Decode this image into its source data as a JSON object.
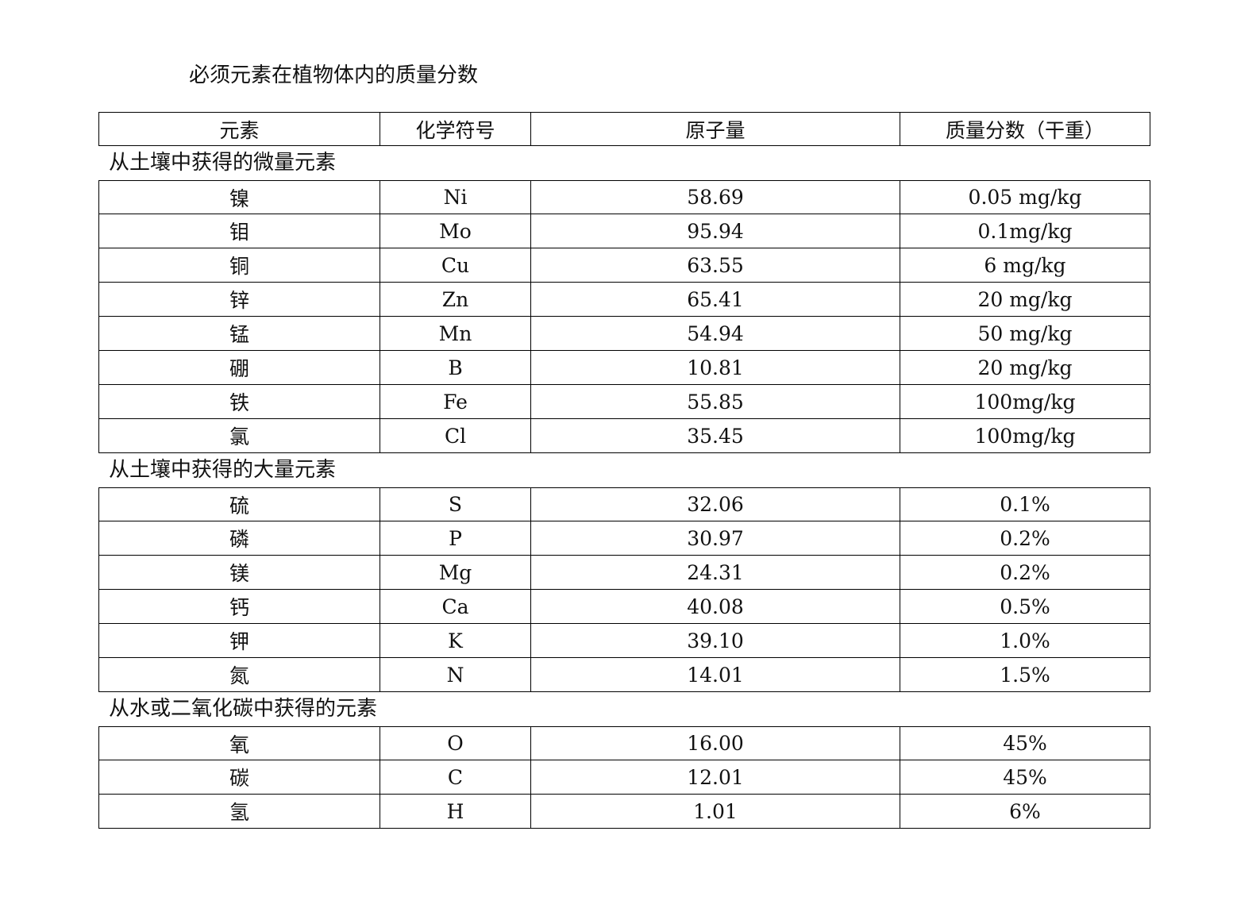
{
  "title": "必须元素在植物体内的质量分数",
  "headers": [
    "元素",
    "化学符号",
    "原子量",
    "质量分数（干重）"
  ],
  "sections": [
    {
      "label": "从土壤中获得的微量元素",
      "rows": [
        [
          "镍",
          "Ni",
          "58.69",
          "0.05 mg/kg"
        ],
        [
          "钼",
          "Mo",
          "95.94",
          "0.1mg/kg"
        ],
        [
          "铜",
          "Cu",
          "63.55",
          "6 mg/kg"
        ],
        [
          "锌",
          "Zn",
          "65.41",
          "20 mg/kg"
        ],
        [
          "锰",
          "Mn",
          "54.94",
          "50 mg/kg"
        ],
        [
          "硼",
          "B",
          "10.81",
          "20 mg/kg"
        ],
        [
          "铁",
          "Fe",
          "55.85",
          "100mg/kg"
        ],
        [
          "氯",
          "Cl",
          "35.45",
          "100mg/kg"
        ]
      ]
    },
    {
      "label": "从土壤中获得的大量元素",
      "rows": [
        [
          "硫",
          "S",
          "32.06",
          "0.1%"
        ],
        [
          "磷",
          "P",
          "30.97",
          "0.2%"
        ],
        [
          "镁",
          "Mg",
          "24.31",
          "0.2%"
        ],
        [
          "钙",
          "Ca",
          "40.08",
          "0.5%"
        ],
        [
          "钾",
          "K",
          "39.10",
          "1.0%"
        ],
        [
          "氮",
          "N",
          "14.01",
          "1.5%"
        ]
      ]
    },
    {
      "label": "从水或二氧化碳中获得的元素",
      "rows": [
        [
          "氧",
          "O",
          "16.00",
          "45%"
        ],
        [
          "碳",
          "C",
          "12.01",
          "45%"
        ],
        [
          "氢",
          "H",
          "1.01",
          "6%"
        ]
      ]
    }
  ]
}
